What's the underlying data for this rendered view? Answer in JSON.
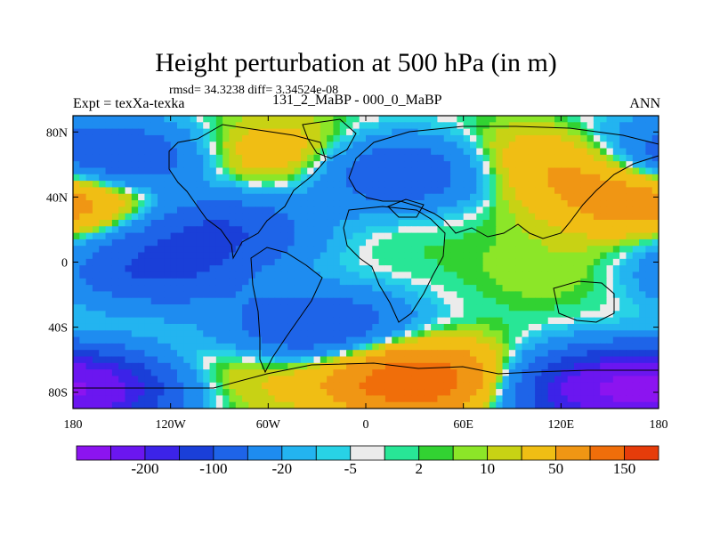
{
  "chart_data": {
    "type": "heatmap",
    "title": "Height perturbation at 500 hPa (in m)",
    "stats_line": "rmsd= 34.3238 diff= 3.34524e-08",
    "left_label": "Expt = texXa-texka",
    "center_label": "131_2_MaBP - 000_0_MaBP",
    "right_label": "ANN",
    "xlabel": "",
    "ylabel": "",
    "xlim": [
      -180,
      180
    ],
    "ylim": [
      -90,
      90
    ],
    "x_ticks": [
      {
        "value": -180,
        "label": "180"
      },
      {
        "value": -120,
        "label": "120W"
      },
      {
        "value": -60,
        "label": "60W"
      },
      {
        "value": 0,
        "label": "0"
      },
      {
        "value": 60,
        "label": "60E"
      },
      {
        "value": 120,
        "label": "120E"
      },
      {
        "value": 180,
        "label": "180"
      }
    ],
    "y_ticks": [
      {
        "value": 80,
        "label": "80N"
      },
      {
        "value": 40,
        "label": "40N"
      },
      {
        "value": 0,
        "label": "0"
      },
      {
        "value": -40,
        "label": "40S"
      },
      {
        "value": -80,
        "label": "80S"
      }
    ],
    "colorbar": {
      "colors": [
        "#8c14f0",
        "#6b16f0",
        "#3c23e8",
        "#1a3fd8",
        "#1e64e8",
        "#1e8cf0",
        "#23b4f0",
        "#28d2e6",
        "#ebebeb",
        "#28e696",
        "#32d232",
        "#8ce628",
        "#c8d214",
        "#f0be14",
        "#f09614",
        "#f06e0a",
        "#e63c0a"
      ],
      "labels": [
        {
          "after_box": 2,
          "label": "-200"
        },
        {
          "after_box": 4,
          "label": "-100"
        },
        {
          "after_box": 6,
          "label": "-20"
        },
        {
          "after_box": 8,
          "label": "-5"
        },
        {
          "after_box": 10,
          "label": "2"
        },
        {
          "after_box": 12,
          "label": "10"
        },
        {
          "after_box": 14,
          "label": "50"
        },
        {
          "after_box": 16,
          "label": "150"
        }
      ]
    },
    "anomaly_centers": [
      {
        "lon": -150,
        "lat": 62,
        "value": -100
      },
      {
        "lon": -165,
        "lat": 38,
        "value": 50
      },
      {
        "lon": -90,
        "lat": 20,
        "value": -100
      },
      {
        "lon": -55,
        "lat": 65,
        "value": 50
      },
      {
        "lon": 20,
        "lat": 55,
        "value": -100
      },
      {
        "lon": 25,
        "lat": 32,
        "value": 5
      },
      {
        "lon": 110,
        "lat": 62,
        "value": 50
      },
      {
        "lon": 160,
        "lat": 40,
        "value": 50
      },
      {
        "lon": 170,
        "lat": 75,
        "value": -20
      },
      {
        "lon": -130,
        "lat": -5,
        "value": -100
      },
      {
        "lon": 0,
        "lat": 5,
        "value": 2
      },
      {
        "lon": 120,
        "lat": -5,
        "value": 10
      },
      {
        "lon": -30,
        "lat": -40,
        "value": -100
      },
      {
        "lon": 30,
        "lat": -72,
        "value": 150
      },
      {
        "lon": -170,
        "lat": -78,
        "value": -200
      },
      {
        "lon": 145,
        "lat": -78,
        "value": -200
      },
      {
        "lon": -90,
        "lat": -70,
        "value": 30
      }
    ]
  }
}
